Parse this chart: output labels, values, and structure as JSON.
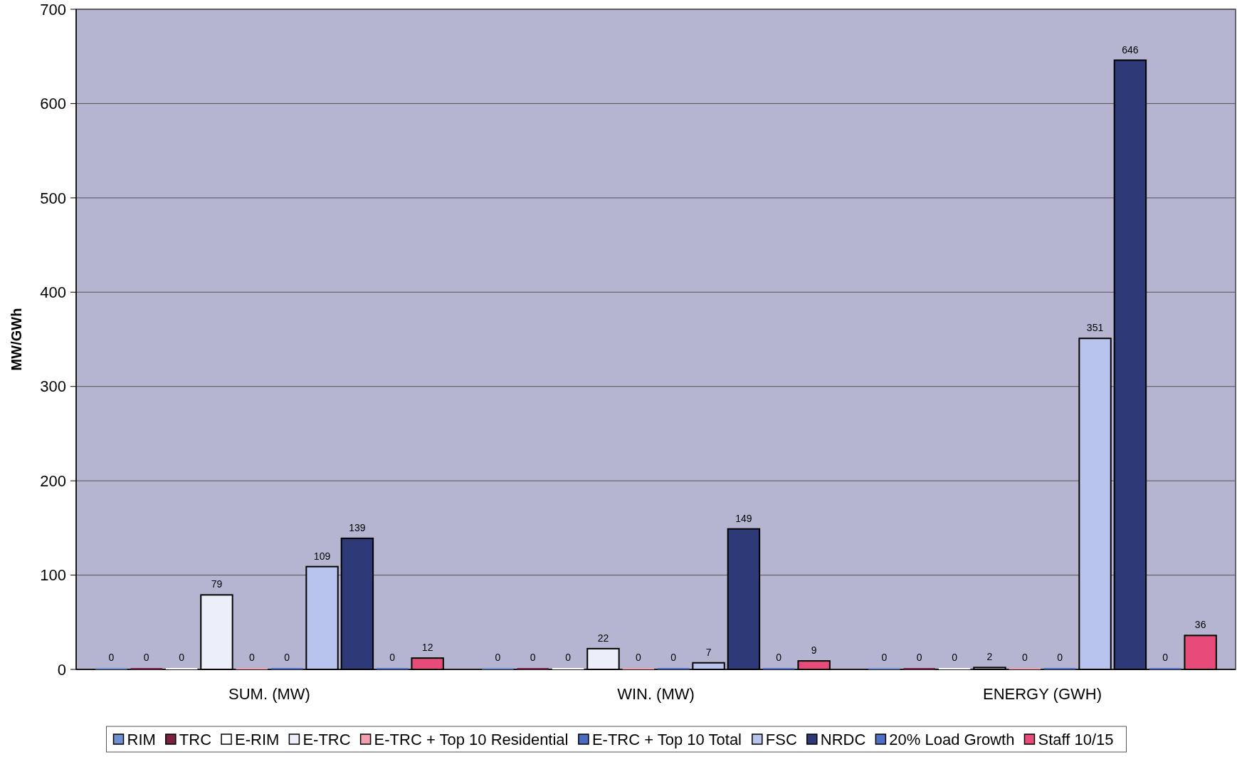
{
  "chart_data": {
    "type": "bar",
    "ylabel": "MW/GWh",
    "categories": [
      "SUM. (MW)",
      "WIN. (MW)",
      "ENERGY (GWH)"
    ],
    "series": [
      {
        "name": "RIM",
        "color": "#6f8fd0",
        "values": [
          0,
          0,
          0
        ]
      },
      {
        "name": "TRC",
        "color": "#7a2040",
        "values": [
          0,
          0,
          0
        ]
      },
      {
        "name": "E-RIM",
        "color": "#ffffff",
        "values": [
          0,
          0,
          0
        ]
      },
      {
        "name": "E-TRC",
        "color": "#eceefa",
        "values": [
          79,
          22,
          2
        ]
      },
      {
        "name": "E-TRC + Top 10 Residential",
        "color": "#f0a0b0",
        "values": [
          0,
          0,
          0
        ]
      },
      {
        "name": "E-TRC + Top 10 Total",
        "color": "#4a6cc0",
        "values": [
          0,
          0,
          0
        ]
      },
      {
        "name": "FSC",
        "color": "#b8c4ee",
        "values": [
          109,
          7,
          351
        ]
      },
      {
        "name": "NRDC",
        "color": "#2e3a78",
        "values": [
          139,
          149,
          646
        ]
      },
      {
        "name": "20% Load Growth",
        "color": "#5070c8",
        "values": [
          0,
          0,
          0
        ]
      },
      {
        "name": "Staff 10/15",
        "color": "#e84a7a",
        "values": [
          12,
          9,
          36
        ]
      }
    ],
    "ylim": [
      0,
      700
    ],
    "yticks": [
      0,
      100,
      200,
      300,
      400,
      500,
      600,
      700
    ],
    "grid": "y",
    "data_labels": true,
    "legend": "bottom"
  }
}
